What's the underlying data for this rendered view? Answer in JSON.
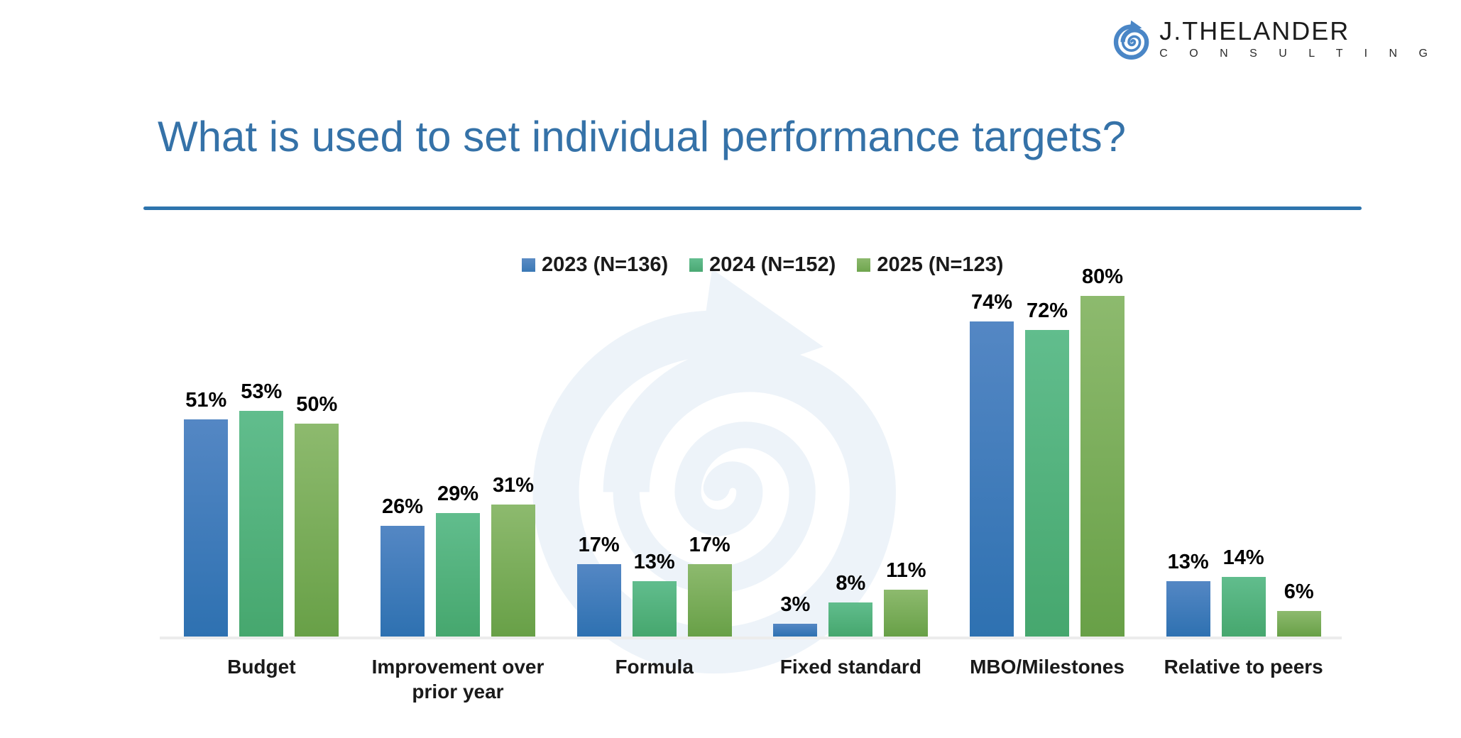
{
  "logo": {
    "name": "J.THELANDER",
    "subtitle": "C O N S U L T I N G"
  },
  "title": "What is used to set individual performance targets?",
  "chart_data": {
    "type": "bar",
    "title": "What is used to set individual performance targets?",
    "categories": [
      "Budget",
      "Improvement over prior year",
      "Formula",
      "Fixed standard",
      "MBO/Milestones",
      "Relative to peers"
    ],
    "series": [
      {
        "name": "2023 (N=136)",
        "values": [
          51,
          26,
          17,
          3,
          74,
          13
        ],
        "color_top": "#5487C4",
        "color_bottom": "#2E71B1",
        "legend_color_top": "#5B8CC4",
        "legend_color_bottom": "#3A78B5"
      },
      {
        "name": "2024 (N=152)",
        "values": [
          53,
          29,
          13,
          8,
          72,
          14
        ],
        "color_top": "#61BD8D",
        "color_bottom": "#46A76E",
        "legend_color_top": "#63BE8F",
        "legend_color_bottom": "#4AA873"
      },
      {
        "name": "2025 (N=123)",
        "values": [
          50,
          31,
          17,
          11,
          80,
          6
        ],
        "color_top": "#8DBA6E",
        "color_bottom": "#68A047",
        "legend_color_top": "#8CB96D",
        "legend_color_bottom": "#6FA54E"
      }
    ],
    "value_suffix": "%",
    "ylim": [
      0,
      100
    ],
    "grid": false,
    "legend_position": "top-center",
    "data_labels": true
  },
  "colors": {
    "title": "#3572A8",
    "rule": "#2E74AD",
    "axis_line": "#ECECEC",
    "logo_blue": "#4A86C6",
    "watermark": "#EDF3F9",
    "label_text": "#000000"
  }
}
